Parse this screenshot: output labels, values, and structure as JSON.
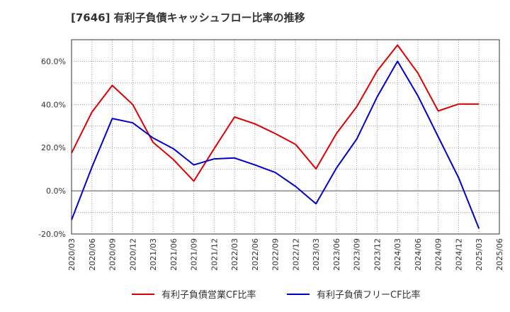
{
  "chart_data": {
    "type": "line",
    "title": "[7646]  有利子負債キャッシュフロー比率の推移",
    "xlabel": "",
    "ylabel": "",
    "x": [
      "2020/03",
      "2020/06",
      "2020/09",
      "2020/12",
      "2021/03",
      "2021/06",
      "2021/09",
      "2021/12",
      "2022/03",
      "2022/06",
      "2022/09",
      "2022/12",
      "2023/03",
      "2023/06",
      "2023/09",
      "2023/12",
      "2024/03",
      "2024/06",
      "2024/09",
      "2024/12",
      "2025/03",
      "2025/06"
    ],
    "ylim": [
      -20,
      70
    ],
    "yticks": [
      -20,
      0,
      20,
      40,
      60
    ],
    "ytick_labels": [
      "-20.0%",
      "0.0%",
      "20.0%",
      "40.0%",
      "60.0%"
    ],
    "grid": true,
    "legend_position": "bottom",
    "series": [
      {
        "name": "有利子負債営業CF比率",
        "color": "#dd0000",
        "values": [
          17.5,
          36.5,
          48.8,
          40.0,
          22.5,
          14.5,
          4.5,
          19.5,
          34.2,
          31.0,
          26.5,
          21.5,
          10.2,
          26.5,
          39.0,
          55.5,
          67.5,
          54.5,
          37.0,
          40.2,
          40.2,
          null
        ]
      },
      {
        "name": "有利子負債フリーCF比率",
        "color": "#0000cc",
        "values": [
          -13.5,
          11.0,
          33.5,
          31.5,
          24.5,
          19.5,
          12.0,
          14.8,
          15.2,
          12.0,
          8.5,
          2.0,
          -6.0,
          10.5,
          24.0,
          43.5,
          60.0,
          44.0,
          25.0,
          6.0,
          -17.5,
          null
        ]
      }
    ]
  }
}
